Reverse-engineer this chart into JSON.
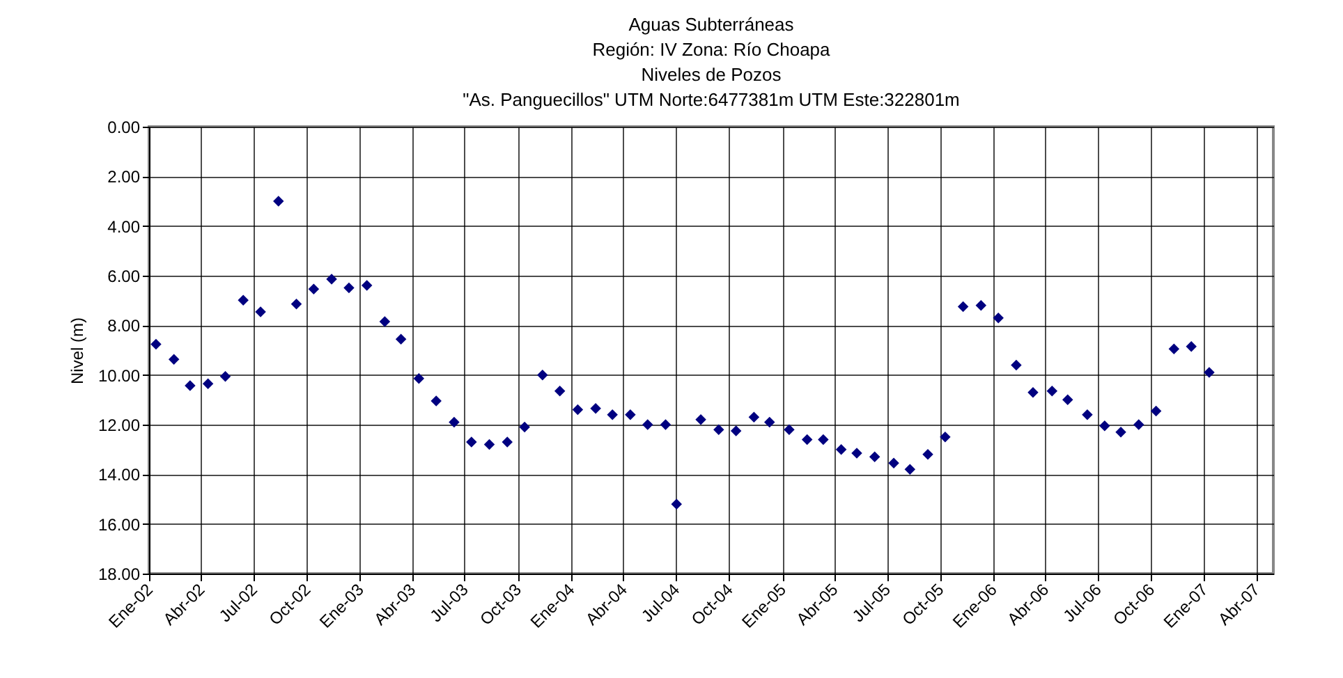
{
  "chart_data": {
    "type": "scatter",
    "title": [
      "Aguas Subterráneas",
      "Región: IV  Zona: Río Choapa",
      "Niveles de Pozos",
      "\"As. Panguecillos\"  UTM Norte:6477381m    UTM Este:322801m"
    ],
    "ylabel": "Nivel (m)",
    "x": [
      "2002-01-13",
      "2002-02-13",
      "2002-03-13",
      "2002-04-13",
      "2002-05-13",
      "2002-06-13",
      "2002-07-13",
      "2002-08-13",
      "2002-09-13",
      "2002-10-13",
      "2002-11-13",
      "2002-12-13",
      "2003-01-13",
      "2003-02-13",
      "2003-03-13",
      "2003-04-13",
      "2003-05-13",
      "2003-06-13",
      "2003-07-13",
      "2003-08-13",
      "2003-09-13",
      "2003-10-13",
      "2003-11-13",
      "2003-12-13",
      "2004-01-13",
      "2004-02-13",
      "2004-03-13",
      "2004-04-13",
      "2004-05-13",
      "2004-06-13",
      "2004-07-02",
      "2004-08-13",
      "2004-09-13",
      "2004-10-13",
      "2004-11-13",
      "2004-12-10",
      "2005-01-13",
      "2005-02-13",
      "2005-03-13",
      "2005-04-13",
      "2005-05-10",
      "2005-06-10",
      "2005-07-13",
      "2005-08-10",
      "2005-09-10",
      "2005-10-10",
      "2005-11-10",
      "2005-12-11",
      "2006-01-10",
      "2006-02-10",
      "2006-03-11",
      "2006-04-13",
      "2006-05-10",
      "2006-06-13",
      "2006-07-13",
      "2006-08-10",
      "2006-09-10",
      "2006-10-10",
      "2006-11-10",
      "2006-12-10",
      "2007-01-10"
    ],
    "series": [
      {
        "color": "#000080",
        "values": [
          8.76,
          9.37,
          10.43,
          10.35,
          10.06,
          6.99,
          7.46,
          3.0,
          7.14,
          6.54,
          6.14,
          6.49,
          6.39,
          7.85,
          8.56,
          10.14,
          11.05,
          11.9,
          12.7,
          12.8,
          12.7,
          12.1,
          10.0,
          10.65,
          11.4,
          11.35,
          11.6,
          11.6,
          12.0,
          12.0,
          15.2,
          11.8,
          12.2,
          12.25,
          11.7,
          11.9,
          12.2,
          12.6,
          12.6,
          13.0,
          13.15,
          13.3,
          13.55,
          13.8,
          13.2,
          12.5,
          7.25,
          7.2,
          7.7,
          9.6,
          10.7,
          10.65,
          11.0,
          11.6,
          12.05,
          12.3,
          12.0,
          11.45,
          8.95,
          8.85,
          9.9
        ]
      }
    ],
    "xlim": [
      "2002-01-01",
      "2007-05-01"
    ],
    "xticks": [
      {
        "value": "2002-01-01",
        "label": "Ene-02"
      },
      {
        "value": "2002-04-01",
        "label": "Abr-02"
      },
      {
        "value": "2002-07-01",
        "label": "Jul-02"
      },
      {
        "value": "2002-10-01",
        "label": "Oct-02"
      },
      {
        "value": "2003-01-01",
        "label": "Ene-03"
      },
      {
        "value": "2003-04-01",
        "label": "Abr-03"
      },
      {
        "value": "2003-07-01",
        "label": "Jul-03"
      },
      {
        "value": "2003-10-01",
        "label": "Oct-03"
      },
      {
        "value": "2004-01-01",
        "label": "Ene-04"
      },
      {
        "value": "2004-04-01",
        "label": "Abr-04"
      },
      {
        "value": "2004-07-01",
        "label": "Jul-04"
      },
      {
        "value": "2004-10-01",
        "label": "Oct-04"
      },
      {
        "value": "2005-01-01",
        "label": "Ene-05"
      },
      {
        "value": "2005-04-01",
        "label": "Abr-05"
      },
      {
        "value": "2005-07-01",
        "label": "Jul-05"
      },
      {
        "value": "2005-10-01",
        "label": "Oct-05"
      },
      {
        "value": "2006-01-01",
        "label": "Ene-06"
      },
      {
        "value": "2006-04-01",
        "label": "Abr-06"
      },
      {
        "value": "2006-07-01",
        "label": "Jul-06"
      },
      {
        "value": "2006-10-01",
        "label": "Oct-06"
      },
      {
        "value": "2007-01-01",
        "label": "Ene-07"
      },
      {
        "value": "2007-04-01",
        "label": "Abr-07"
      }
    ],
    "ylim": [
      18,
      0
    ],
    "yticks": [
      {
        "value": 0,
        "label": "0.00"
      },
      {
        "value": 2,
        "label": "2.00"
      },
      {
        "value": 4,
        "label": "4.00"
      },
      {
        "value": 6,
        "label": "6.00"
      },
      {
        "value": 8,
        "label": "8.00"
      },
      {
        "value": 10,
        "label": "10.00"
      },
      {
        "value": 12,
        "label": "12.00"
      },
      {
        "value": 14,
        "label": "14.00"
      },
      {
        "value": 16,
        "label": "16.00"
      },
      {
        "value": 18,
        "label": "18.00"
      }
    ],
    "grid": true,
    "marker": "diamond",
    "legend": false
  }
}
